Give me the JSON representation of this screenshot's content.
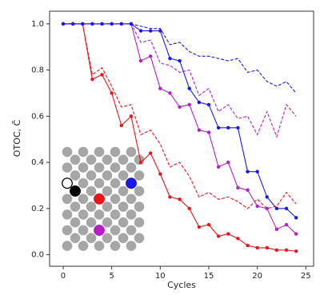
{
  "chart_data": {
    "type": "line",
    "x_label": "Cycles",
    "y_label": "OTOC, C̄",
    "x": [
      0,
      1,
      2,
      3,
      4,
      5,
      6,
      7,
      8,
      9,
      10,
      11,
      12,
      13,
      14,
      15,
      16,
      17,
      18,
      19,
      20,
      21,
      22,
      23,
      24
    ],
    "xlim": [
      -1.4,
      25.8
    ],
    "ylim": [
      -0.05,
      1.055
    ],
    "xticks": [
      0,
      5,
      10,
      15,
      20,
      25
    ],
    "yticks": [
      {
        "value": 0,
        "label": "0.0"
      },
      {
        "value": 0.2,
        "label": "0.2"
      },
      {
        "value": 0.4,
        "label": "0.4"
      },
      {
        "value": 0.6,
        "label": "0.6"
      },
      {
        "value": 0.8,
        "label": "0.8"
      },
      {
        "value": 1,
        "label": "1.0"
      }
    ],
    "series": [
      {
        "color": "#e8151b",
        "dashed": false,
        "markers": true,
        "values": [
          1.0,
          1.0,
          1.0,
          0.76,
          0.78,
          0.7,
          0.56,
          0.6,
          0.4,
          0.44,
          0.35,
          0.25,
          0.24,
          0.2,
          0.12,
          0.13,
          0.08,
          0.09,
          0.07,
          0.04,
          0.03,
          0.03,
          0.02,
          0.02,
          0.015
        ]
      },
      {
        "color": "#e8151b",
        "dashed": true,
        "markers": false,
        "values": [
          1.0,
          1.0,
          1.0,
          0.78,
          0.81,
          0.73,
          0.64,
          0.65,
          0.52,
          0.54,
          0.48,
          0.38,
          0.4,
          0.34,
          0.25,
          0.27,
          0.24,
          0.25,
          0.23,
          0.2,
          0.24,
          0.2,
          0.21,
          0.27,
          0.22
        ]
      },
      {
        "color": "#b51fc4",
        "dashed": false,
        "markers": true,
        "values": [
          1.0,
          1.0,
          1.0,
          1.0,
          1.0,
          1.0,
          1.0,
          1.0,
          0.84,
          0.86,
          0.72,
          0.7,
          0.64,
          0.65,
          0.54,
          0.53,
          0.38,
          0.4,
          0.29,
          0.28,
          0.21,
          0.2,
          0.11,
          0.13,
          0.09
        ]
      },
      {
        "color": "#b51fc4",
        "dashed": true,
        "markers": false,
        "values": [
          1.0,
          1.0,
          1.0,
          1.0,
          1.0,
          1.0,
          1.0,
          1.0,
          0.92,
          0.93,
          0.83,
          0.82,
          0.79,
          0.8,
          0.69,
          0.72,
          0.62,
          0.65,
          0.59,
          0.6,
          0.52,
          0.62,
          0.51,
          0.65,
          0.6
        ]
      },
      {
        "color": "#1a1ae6",
        "dashed": false,
        "markers": true,
        "values": [
          1.0,
          1.0,
          1.0,
          1.0,
          1.0,
          1.0,
          1.0,
          1.0,
          0.97,
          0.97,
          0.97,
          0.85,
          0.84,
          0.72,
          0.66,
          0.65,
          0.55,
          0.55,
          0.55,
          0.36,
          0.36,
          0.25,
          0.2,
          0.2,
          0.16
        ]
      },
      {
        "color": "#1a1ae6",
        "dashed": true,
        "markers": false,
        "values": [
          1.0,
          1.0,
          1.0,
          1.0,
          1.0,
          1.0,
          1.0,
          1.0,
          0.99,
          0.98,
          0.98,
          0.91,
          0.92,
          0.88,
          0.86,
          0.86,
          0.85,
          0.84,
          0.85,
          0.79,
          0.8,
          0.75,
          0.73,
          0.75,
          0.7
        ]
      }
    ]
  }
}
